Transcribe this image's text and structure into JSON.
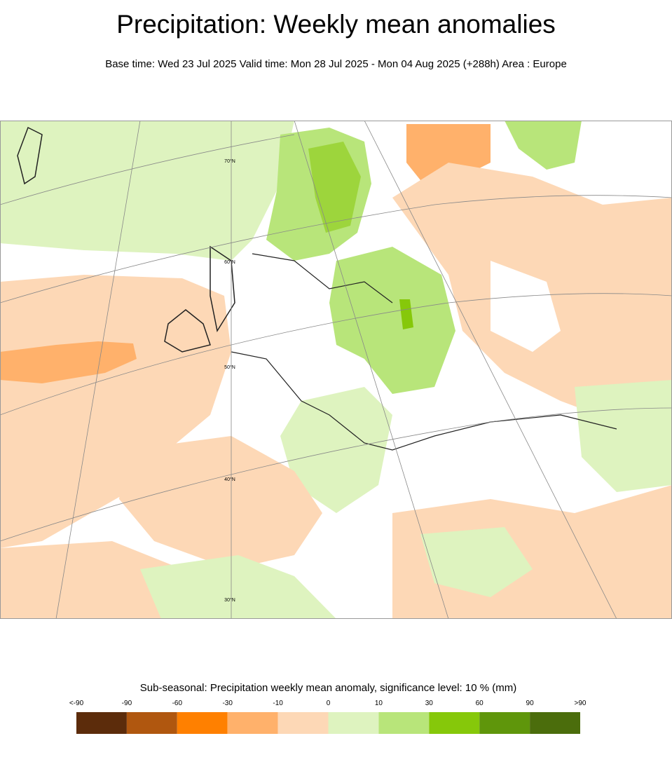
{
  "header": {
    "title": "Precipitation: Weekly mean anomalies",
    "subtitle": "Base time: Wed 23 Jul 2025 Valid time: Mon 28 Jul 2025 - Mon 04 Aug 2025 (+288h) Area : Europe"
  },
  "map": {
    "latitude_labels": [
      "70°N",
      "60°N",
      "50°N",
      "40°N",
      "30°N"
    ]
  },
  "legend": {
    "title": "Sub-seasonal: Precipitation weekly mean anomaly, significance level: 10 % (mm)",
    "labels": [
      "<-90",
      "-90",
      "-60",
      "-30",
      "-10",
      "0",
      "10",
      "30",
      "60",
      "90",
      ">90"
    ],
    "colors": [
      "#5c2c0b",
      "#b0570f",
      "#ff8000",
      "#ffb16b",
      "#fdd8b6",
      "#def3bf",
      "#b8e57a",
      "#86c80a",
      "#5f960b",
      "#4b6d0c"
    ]
  }
}
